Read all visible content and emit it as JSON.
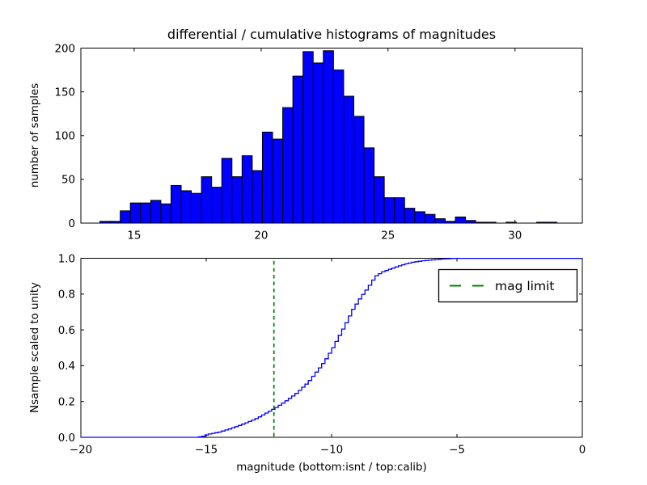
{
  "figure": {
    "title": "differential / cumulative histograms of magnitudes",
    "xlabel": "magnitude (bottom:isnt / top:calib)",
    "background_color": "#ffffff",
    "axes_color": "#000000"
  },
  "chart_data": [
    {
      "type": "bar",
      "subplot": "top",
      "title": "differential / cumulative histograms of magnitudes",
      "ylabel": "number of samples",
      "xlabel": "",
      "xlim": [
        12.9,
        32.65
      ],
      "ylim": [
        0,
        200
      ],
      "xticks": [
        15,
        20,
        25,
        30
      ],
      "xtick_labels": [
        "15",
        "20",
        "25",
        "30"
      ],
      "yticks": [
        0,
        50,
        100,
        150,
        200
      ],
      "ytick_labels": [
        "0",
        "50",
        "100",
        "150",
        "200"
      ],
      "grid": false,
      "bar_color": "#0000ff",
      "bar_edge_color": "#000000",
      "bin_start": 13.65,
      "bin_width": 0.4,
      "values": [
        2,
        2,
        14,
        23,
        23,
        26,
        22,
        43,
        37,
        34,
        53,
        41,
        74,
        53,
        77,
        60,
        104,
        96,
        132,
        168,
        196,
        183,
        197,
        175,
        145,
        122,
        86,
        53,
        29,
        29,
        17,
        13,
        10,
        5,
        2,
        7,
        3,
        1,
        1,
        0,
        1,
        0,
        0,
        1,
        1,
        0,
        0
      ]
    },
    {
      "type": "line",
      "subplot": "bottom",
      "ylabel": "Nsample scaled to unity",
      "xlabel": "magnitude (bottom:isnt / top:calib)",
      "xlim": [
        -20,
        0
      ],
      "ylim": [
        0.0,
        1.0
      ],
      "xticks": [
        -20,
        -15,
        -10,
        -5,
        0
      ],
      "xtick_labels": [
        "−20",
        "−15",
        "−10",
        "−5",
        "0"
      ],
      "yticks": [
        0.0,
        0.2,
        0.4,
        0.6,
        0.8,
        1.0
      ],
      "ytick_labels": [
        "0.0",
        "0.2",
        "0.4",
        "0.6",
        "0.8",
        "1.0"
      ],
      "grid": false,
      "line_color": "#0000ff",
      "line_style": "steps",
      "step_width": 0.133,
      "step_start": -15.45,
      "step_end": -5.0,
      "points": [
        [
          -20.0,
          0.0
        ],
        [
          -15.45,
          0.0
        ],
        [
          -15.2,
          0.005
        ],
        [
          -15.0,
          0.016
        ],
        [
          -14.5,
          0.03
        ],
        [
          -14.0,
          0.052
        ],
        [
          -13.5,
          0.078
        ],
        [
          -13.0,
          0.108
        ],
        [
          -12.5,
          0.148
        ],
        [
          -12.3,
          0.163
        ],
        [
          -12.0,
          0.19
        ],
        [
          -11.5,
          0.24
        ],
        [
          -11.0,
          0.305
        ],
        [
          -10.6,
          0.375
        ],
        [
          -10.3,
          0.43
        ],
        [
          -10.0,
          0.5
        ],
        [
          -9.75,
          0.565
        ],
        [
          -9.5,
          0.63
        ],
        [
          -9.2,
          0.715
        ],
        [
          -8.9,
          0.78
        ],
        [
          -8.6,
          0.835
        ],
        [
          -8.3,
          0.9
        ],
        [
          -8.0,
          0.925
        ],
        [
          -7.7,
          0.94
        ],
        [
          -7.4,
          0.955
        ],
        [
          -7.1,
          0.968
        ],
        [
          -6.8,
          0.978
        ],
        [
          -6.4,
          0.986
        ],
        [
          -6.0,
          0.991
        ],
        [
          -5.6,
          0.996
        ],
        [
          -5.2,
          0.999
        ],
        [
          -5.0,
          1.0
        ],
        [
          0.0,
          1.0
        ]
      ],
      "vline": {
        "x": -12.3,
        "color": "#008000",
        "linestyle": "dashed",
        "label": "mag limit"
      },
      "legend": {
        "position": "upper right",
        "label": "mag limit",
        "line_color": "#008000",
        "linestyle": "dashed"
      }
    }
  ]
}
